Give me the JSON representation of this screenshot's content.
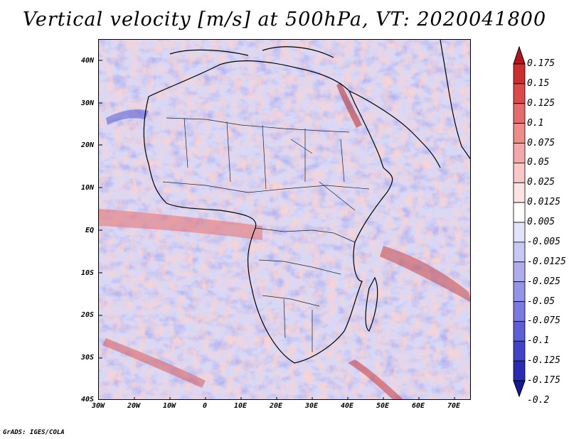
{
  "title": "Vertical velocity [m/s] at 500hPa, VT: 2020041800",
  "footer": "GrADS: IGES/COLA",
  "map": {
    "projection": "latlon",
    "lon_range": [
      -30,
      75
    ],
    "lat_range": [
      -40,
      45
    ],
    "lat_ticks": [
      "40N",
      "30N",
      "20N",
      "10N",
      "EQ",
      "10S",
      "20S",
      "30S",
      "40S"
    ],
    "lon_ticks": [
      "30W",
      "20W",
      "10W",
      "0",
      "10E",
      "20E",
      "30E",
      "40E",
      "50E",
      "60E",
      "70E"
    ]
  },
  "colorbar": {
    "labels": [
      "0.175",
      "0.15",
      "0.125",
      "0.1",
      "0.075",
      "0.05",
      "0.025",
      "0.0125",
      "0.005",
      "-0.005",
      "-0.0125",
      "-0.025",
      "-0.05",
      "-0.075",
      "-0.1",
      "-0.125",
      "-0.175",
      "-0.2"
    ],
    "colors": [
      "#b5141c",
      "#cd2d2d",
      "#dc4a4a",
      "#e66b6b",
      "#ee8b8b",
      "#f4a9a9",
      "#f9c7c7",
      "#fde3e3",
      "#ffffff",
      "#e2e2fb",
      "#c8c8f5",
      "#aeaeef",
      "#9494e8",
      "#7a7ae0",
      "#5e5ed6",
      "#4242c8",
      "#2a2ab4",
      "#161696"
    ]
  }
}
